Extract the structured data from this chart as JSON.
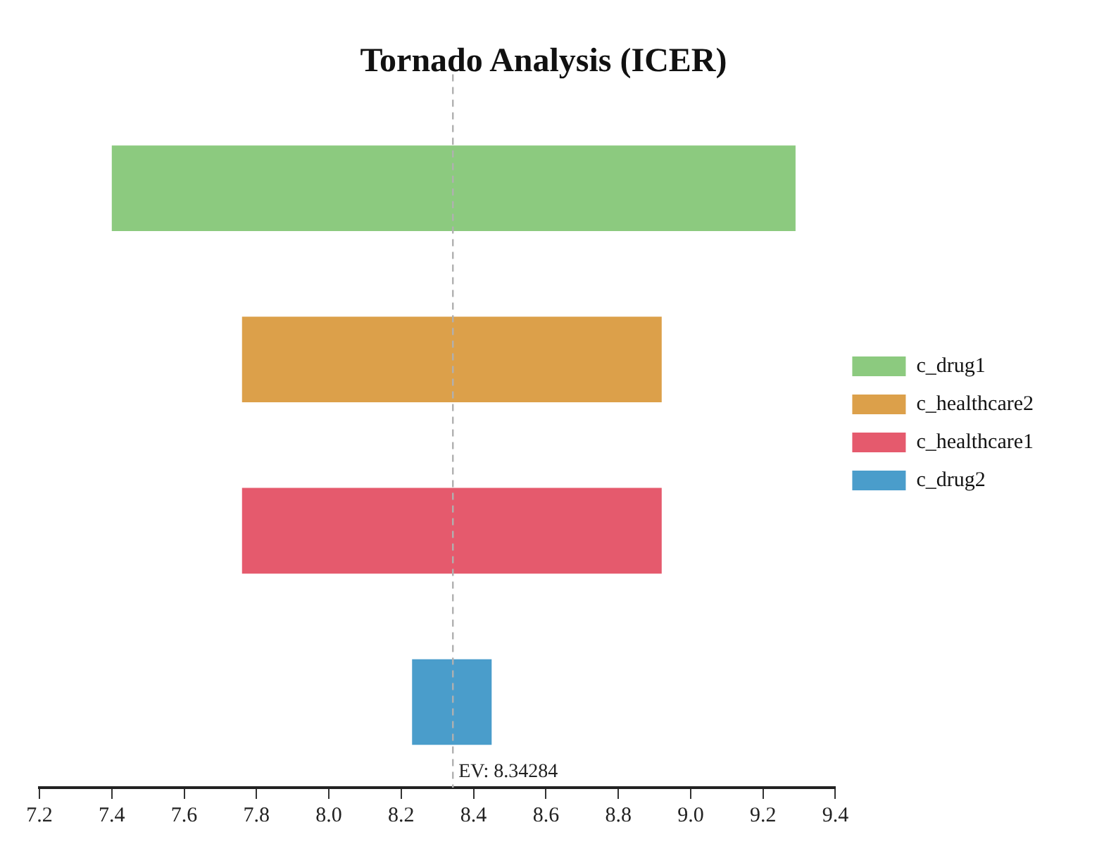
{
  "chart_data": {
    "type": "bar",
    "orientation": "horizontal",
    "title": "Tornado Analysis (ICER)",
    "categories": [
      null,
      null,
      null,
      null
    ],
    "series": [
      {
        "name": "c_drug1",
        "color": "#8cca7f",
        "values": [
          1.89,
          null,
          null,
          null
        ],
        "base": [
          7.4,
          null,
          null,
          null
        ]
      },
      {
        "name": "c_healthcare2",
        "color": "#dca04a",
        "values": [
          null,
          1.16,
          null,
          null
        ],
        "base": [
          null,
          7.76,
          null,
          null
        ]
      },
      {
        "name": "c_healthcare1",
        "color": "#e55a6d",
        "values": [
          null,
          null,
          1.16,
          null
        ],
        "base": [
          null,
          null,
          7.76,
          null
        ]
      },
      {
        "name": "c_drug2",
        "color": "#4a9dcb",
        "values": [
          null,
          null,
          null,
          0.22
        ],
        "base": [
          null,
          null,
          null,
          8.23
        ]
      }
    ],
    "xlim": [
      7.2,
      9.4
    ],
    "xticks": [
      {
        "value": 7.2,
        "label": "7.2"
      },
      {
        "value": 7.4,
        "label": "7.4"
      },
      {
        "value": 7.6,
        "label": "7.6"
      },
      {
        "value": 7.8,
        "label": "7.8"
      },
      {
        "value": 8.0,
        "label": "8.0"
      },
      {
        "value": 8.2,
        "label": "8.2"
      },
      {
        "value": 8.4,
        "label": "8.4"
      },
      {
        "value": 8.6,
        "label": "8.6"
      },
      {
        "value": 8.8,
        "label": "8.8"
      },
      {
        "value": 9.0,
        "label": "9.0"
      },
      {
        "value": 9.2,
        "label": "9.2"
      },
      {
        "value": 9.4,
        "label": "9.4"
      }
    ],
    "ref_lines": [
      {
        "axis": "x",
        "value": 8.34284,
        "label": "EV: 8.34284",
        "color": "#b0b0b0",
        "line_style": "dashed"
      }
    ],
    "grid": false,
    "legend": "right"
  }
}
